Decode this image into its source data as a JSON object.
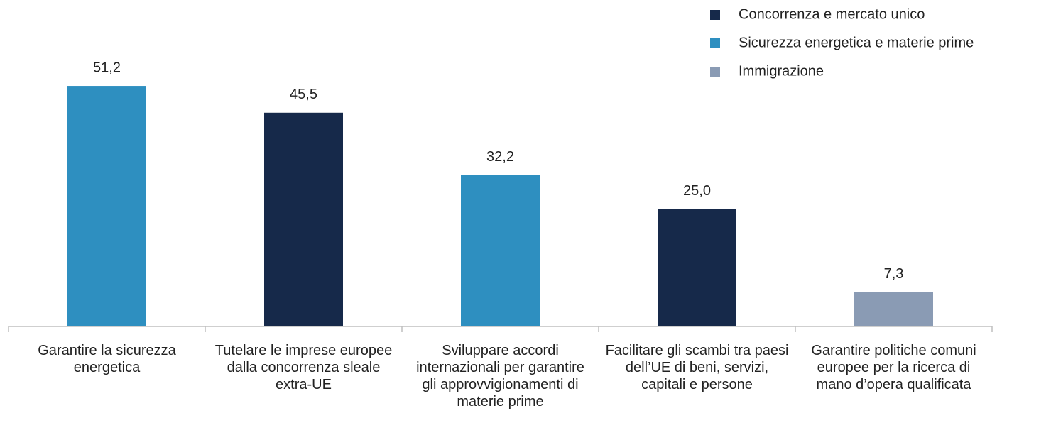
{
  "chart_data": {
    "type": "bar",
    "categories": [
      "Garantire la sicurezza energetica",
      "Tutelare le imprese europee dalla concorrenza sleale extra-UE",
      "Sviluppare accordi internazionali per garantire gli approvvigionamenti di materie prime",
      "Facilitare gli scambi tra paesi dell’UE di beni, servizi, capitali e persone",
      "Garantire politiche comuni europee per la ricerca di mano d’opera qualificata"
    ],
    "series": [
      {
        "name": "Concorrenza e mercato unico",
        "color": "#16294a",
        "values": [
          null,
          45.5,
          null,
          25.0,
          null
        ],
        "value_labels": [
          null,
          "45,5",
          null,
          "25,0",
          null
        ]
      },
      {
        "name": "Sicurezza energetica e materie prime",
        "color": "#2e8fc0",
        "values": [
          51.2,
          null,
          32.2,
          null,
          null
        ],
        "value_labels": [
          "51,2",
          null,
          "32,2",
          null,
          null
        ]
      },
      {
        "name": "Immigrazione",
        "color": "#8a9bb4",
        "values": [
          null,
          null,
          null,
          null,
          7.3
        ],
        "value_labels": [
          null,
          null,
          null,
          null,
          "7,3"
        ]
      }
    ],
    "legend": "top-right"
  }
}
